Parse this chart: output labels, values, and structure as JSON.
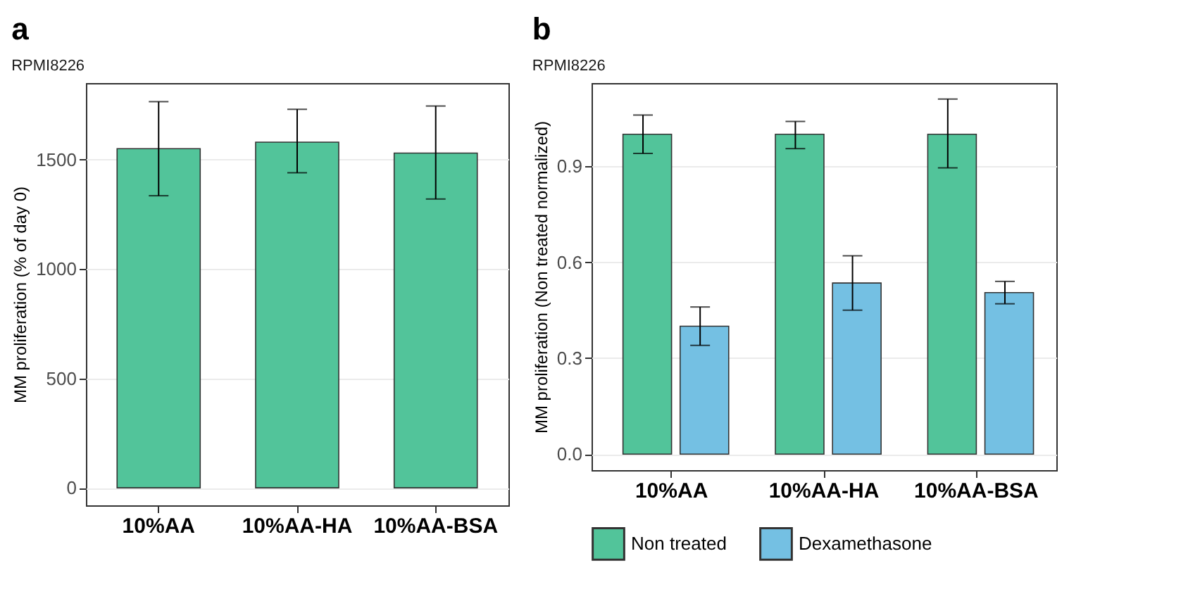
{
  "chart_data": [
    {
      "type": "bar",
      "title": "a",
      "subtitle": "RPMI8226",
      "ylabel": "MM proliferation (% of day 0)",
      "categories": [
        "10%AA",
        "10%AA-HA",
        "10%AA-BSA"
      ],
      "series": [
        {
          "color": "#52c49a",
          "values": [
            1550,
            1580,
            1530
          ],
          "errors": [
            [
              1335,
              1765
            ],
            [
              1440,
              1730
            ],
            [
              1320,
              1745
            ]
          ]
        }
      ],
      "ylim": [
        -80,
        1850
      ],
      "yticks": [
        0,
        500,
        1000,
        1500
      ],
      "grid": "y",
      "legend": false
    },
    {
      "type": "bar",
      "title": "b",
      "subtitle": "RPMI8226",
      "ylabel": "MM proliferation (Non treated normalized)",
      "categories": [
        "10%AA",
        "10%AA-HA",
        "10%AA-BSA"
      ],
      "series": [
        {
          "name": "Non treated",
          "color": "#52c49a",
          "values": [
            1.0,
            1.0,
            1.0
          ],
          "errors": [
            [
              0.94,
              1.06
            ],
            [
              0.955,
              1.04
            ],
            [
              0.895,
              1.11
            ]
          ]
        },
        {
          "name": "Dexamethasone",
          "color": "#74c0e3",
          "values": [
            0.4,
            0.535,
            0.505
          ],
          "errors": [
            [
              0.34,
              0.46
            ],
            [
              0.45,
              0.62
            ],
            [
              0.47,
              0.54
            ]
          ]
        }
      ],
      "ylim": [
        -0.05,
        1.16
      ],
      "yticks": [
        {
          "value": 0,
          "label": "0.0"
        },
        {
          "value": 0.3,
          "label": "0.3"
        },
        {
          "value": 0.6,
          "label": "0.6"
        },
        {
          "value": 0.9,
          "label": "0.9"
        }
      ],
      "grid": "y",
      "legend": "bottom"
    }
  ]
}
